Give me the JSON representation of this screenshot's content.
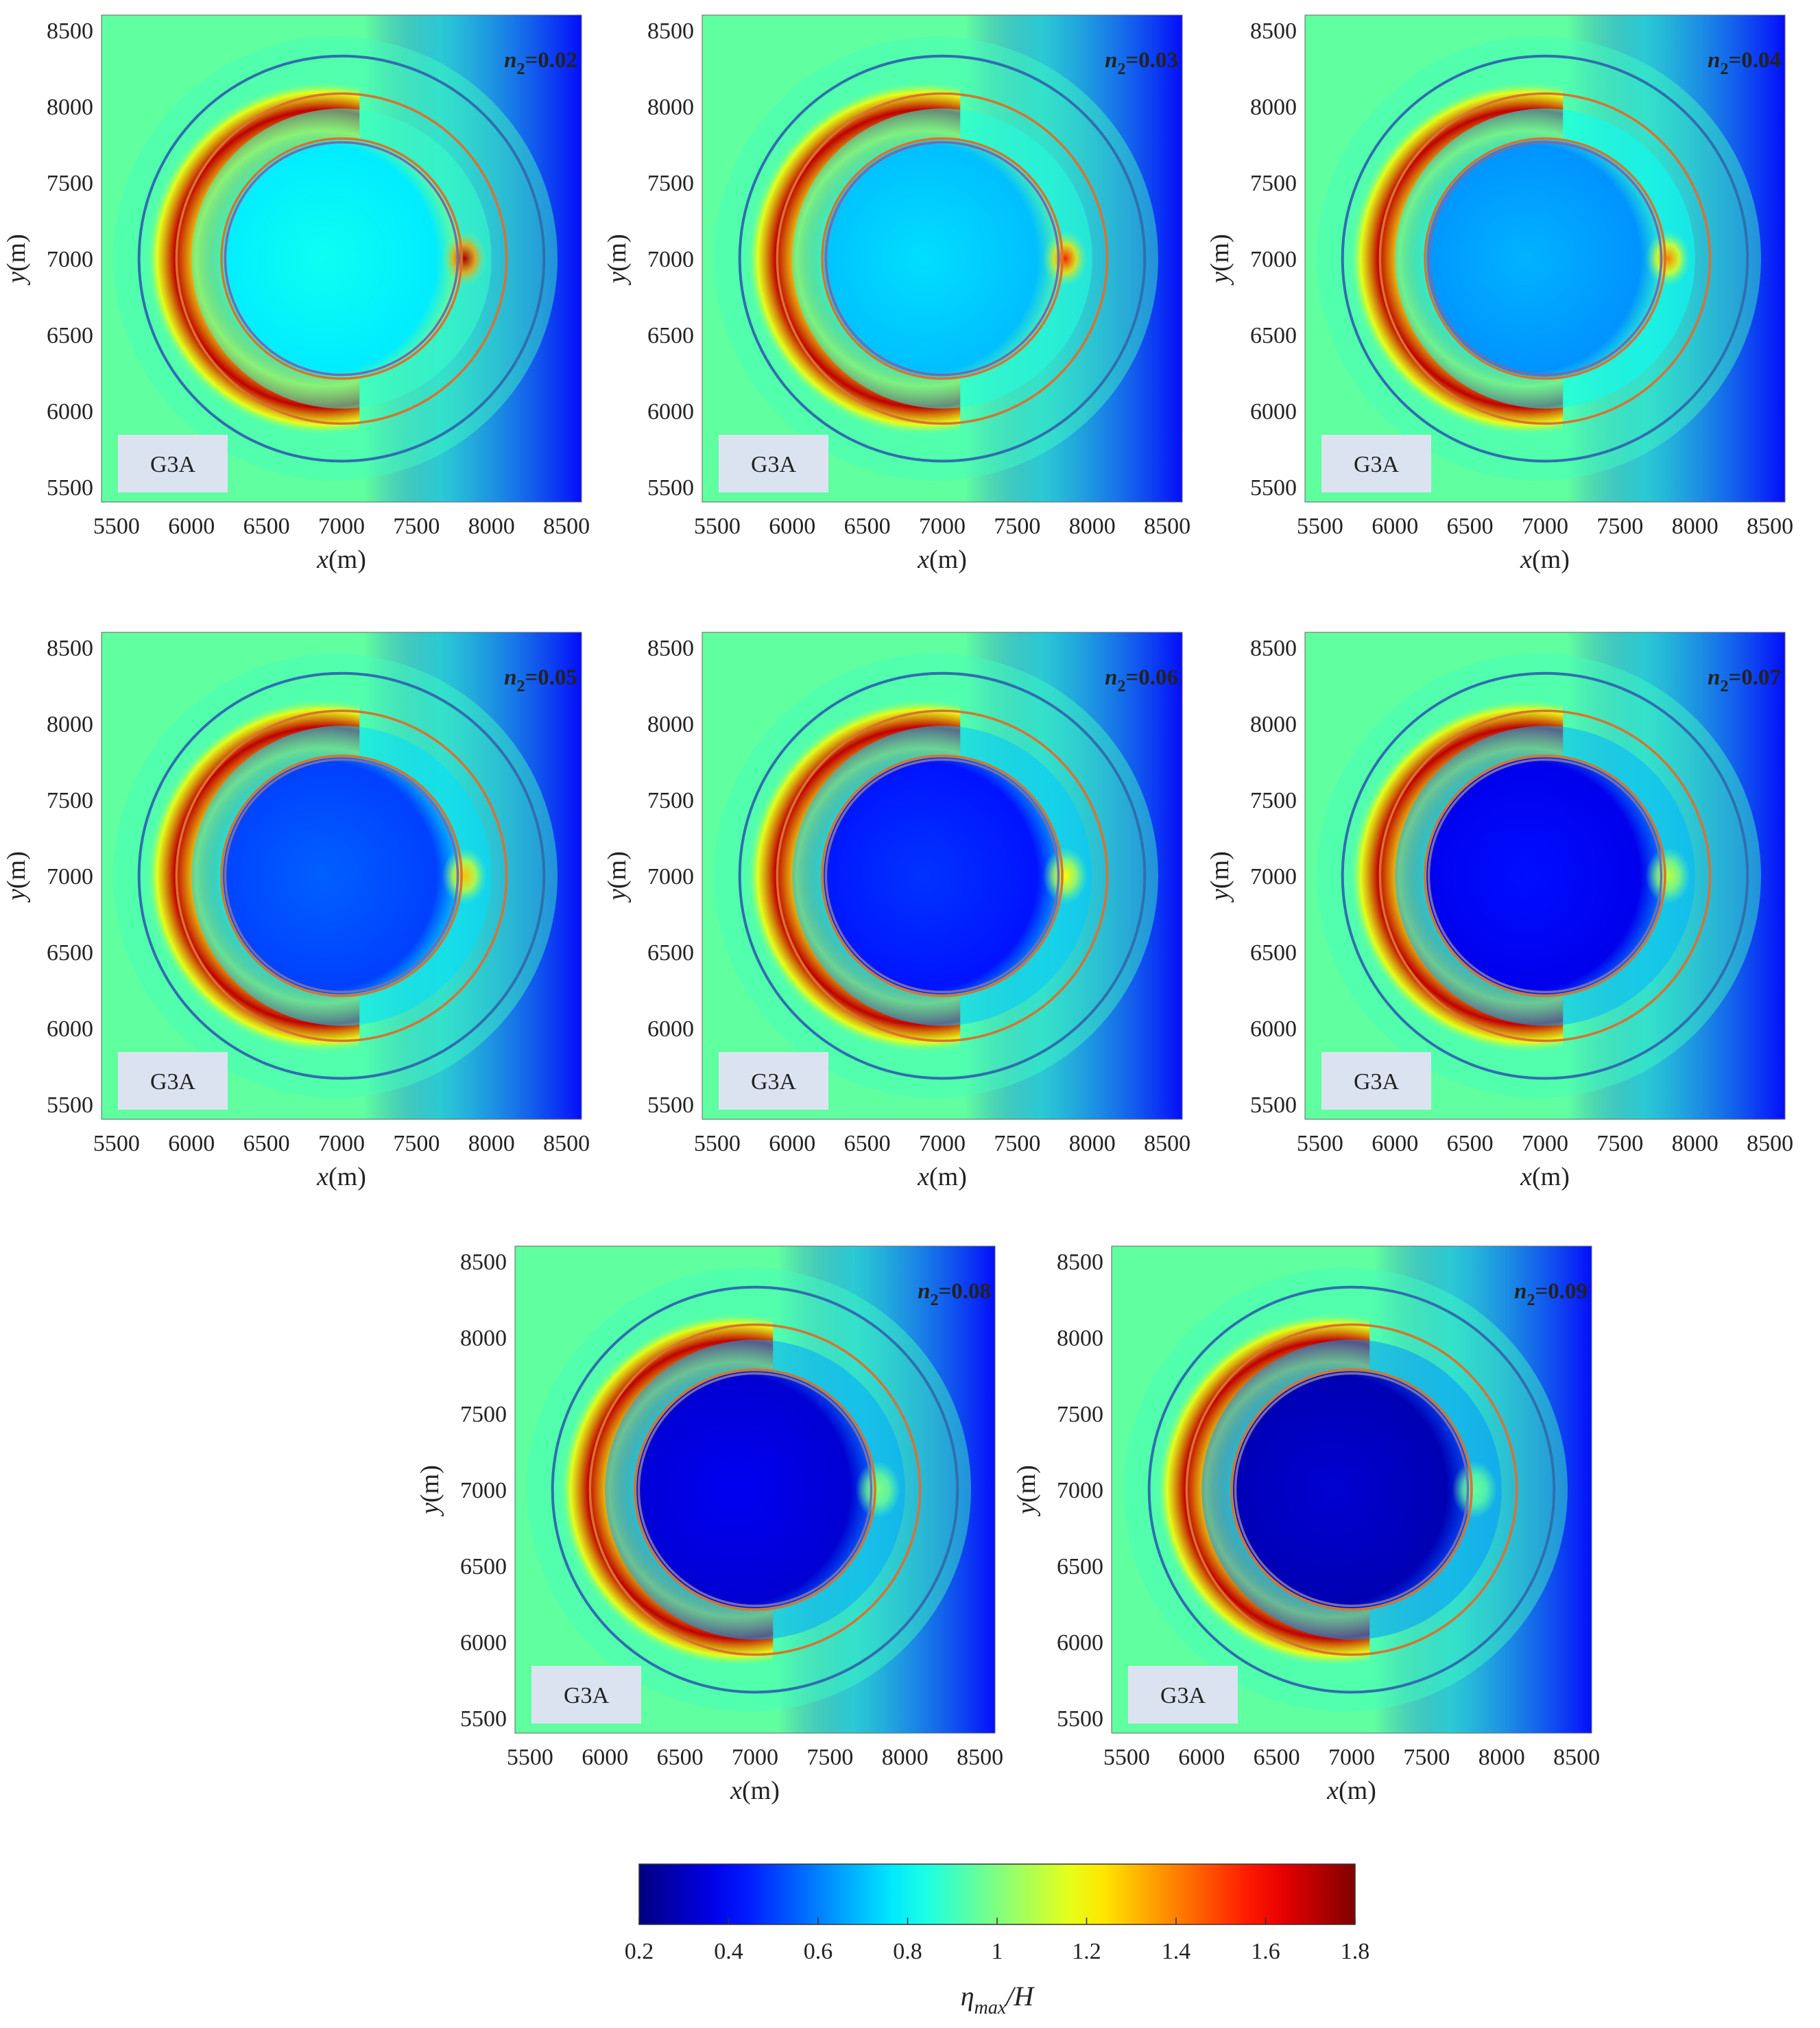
{
  "chart_data": {
    "type": "heatmap",
    "layout": "3-3-2 grid of contour panels with shared colorbar",
    "x_axis": {
      "label_var": "x",
      "label_unit": "(m)",
      "range": [
        5400,
        8600
      ],
      "ticks": [
        5500,
        6000,
        6500,
        7000,
        7500,
        8000,
        8500
      ]
    },
    "y_axis": {
      "label_var": "y",
      "label_unit": "(m)",
      "range": [
        5400,
        8600
      ],
      "ticks": [
        5500,
        6000,
        6500,
        7000,
        7500,
        8000,
        8500
      ]
    },
    "circles": [
      {
        "center": [
          7000,
          7000
        ],
        "radius": 1350,
        "color": "#2f6fae",
        "role": "outer"
      },
      {
        "center": [
          7000,
          7000
        ],
        "radius": 1100,
        "color": "#d9722f",
        "role": "middle"
      },
      {
        "center": [
          7000,
          7000
        ],
        "radius": 800,
        "color": "#d9722f",
        "role": "inner-outer"
      },
      {
        "center": [
          7000,
          7000
        ],
        "radius": 775,
        "color": "#7a6aa8",
        "role": "inner"
      }
    ],
    "panels": [
      {
        "label_prefix": "n",
        "label_sub": "2",
        "label_value": "=0.02",
        "badge": "G3A",
        "interior_level": 0.82,
        "hotspot_level": 1.75
      },
      {
        "label_prefix": "n",
        "label_sub": "2",
        "label_value": "=0.03",
        "badge": "G3A",
        "interior_level": 0.75,
        "hotspot_level": 1.55
      },
      {
        "label_prefix": "n",
        "label_sub": "2",
        "label_value": "=0.04",
        "badge": "G3A",
        "interior_level": 0.68,
        "hotspot_level": 1.4
      },
      {
        "label_prefix": "n",
        "label_sub": "2",
        "label_value": "=0.05",
        "badge": "G3A",
        "interior_level": 0.55,
        "hotspot_level": 1.3
      },
      {
        "label_prefix": "n",
        "label_sub": "2",
        "label_value": "=0.06",
        "badge": "G3A",
        "interior_level": 0.48,
        "hotspot_level": 1.2
      },
      {
        "label_prefix": "n",
        "label_sub": "2",
        "label_value": "=0.07",
        "badge": "G3A",
        "interior_level": 0.42,
        "hotspot_level": 1.1
      },
      {
        "label_prefix": "n",
        "label_sub": "2",
        "label_value": "=0.08",
        "badge": "G3A",
        "interior_level": 0.38,
        "hotspot_level": 1.0
      },
      {
        "label_prefix": "n",
        "label_sub": "2",
        "label_value": "=0.09",
        "badge": "G3A",
        "interior_level": 0.33,
        "hotspot_level": 0.95
      }
    ],
    "field_levels": {
      "background": 0.95,
      "crescent_peak": 1.7,
      "shadow": 0.4
    },
    "colorbar": {
      "range": [
        0.2,
        1.8
      ],
      "ticks": [
        0.2,
        0.4,
        0.6,
        0.8,
        1,
        1.2,
        1.4,
        1.6,
        1.8
      ],
      "label_main": "η",
      "label_sub": "max",
      "label_tail": "/H",
      "colormap": "jet"
    }
  }
}
